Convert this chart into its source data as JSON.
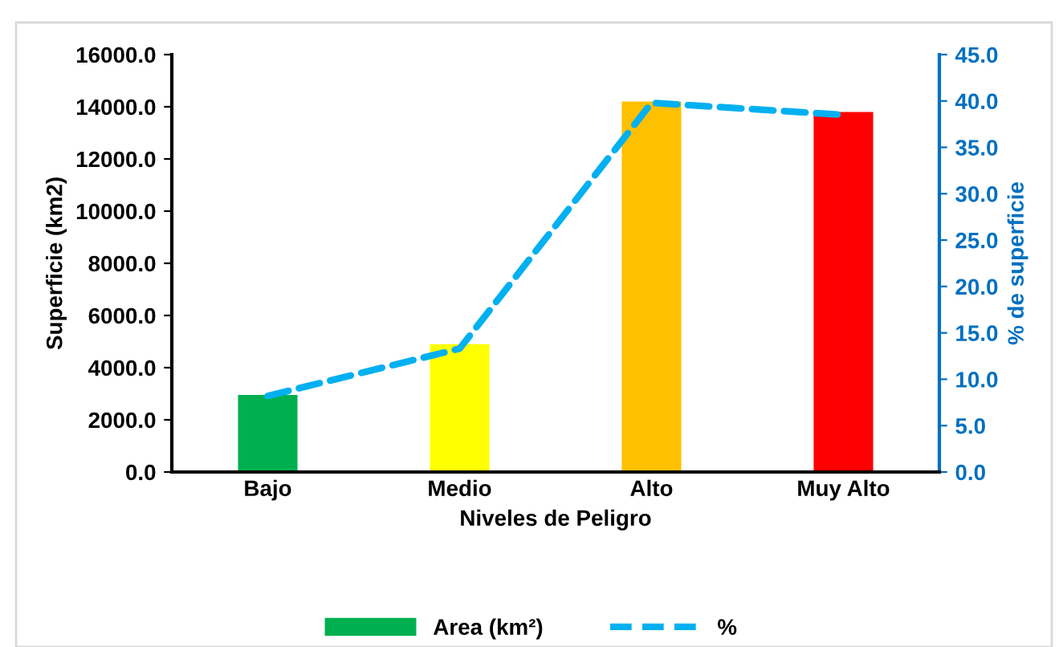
{
  "chart_data": {
    "type": "bar",
    "xlabel": "Niveles de Peligro",
    "ylabel": "Superficie (km2)",
    "y2label": "% de superficie",
    "categories": [
      "Bajo",
      "Medio",
      "Alto",
      "Muy Alto"
    ],
    "series": [
      {
        "name": "Area (km²)",
        "color": "#00b050",
        "colors": [
          "#00b050",
          "#ffff00",
          "#ffc000",
          "#ff0000"
        ],
        "values": [
          2950,
          4900,
          14200,
          13800
        ]
      },
      {
        "name": "%",
        "type": "line",
        "axis": "y2",
        "color": "#00b0f0",
        "line_style": "dashed",
        "values": [
          8.2,
          13.3,
          39.8,
          38.5
        ]
      }
    ],
    "ylim": [
      0,
      16000
    ],
    "yticks": [
      {
        "value": 0,
        "label": "0.0"
      },
      {
        "value": 2000,
        "label": "2000.0"
      },
      {
        "value": 4000,
        "label": "4000.0"
      },
      {
        "value": 6000,
        "label": "6000.0"
      },
      {
        "value": 8000,
        "label": "8000.0"
      },
      {
        "value": 10000,
        "label": "10000.0"
      },
      {
        "value": 12000,
        "label": "12000.0"
      },
      {
        "value": 14000,
        "label": "14000.0"
      },
      {
        "value": 16000,
        "label": "16000.0"
      }
    ],
    "y2lim": [
      0,
      45
    ],
    "y2ticks": [
      {
        "value": 0,
        "label": "0.0"
      },
      {
        "value": 5,
        "label": "5.0"
      },
      {
        "value": 10,
        "label": "10.0"
      },
      {
        "value": 15,
        "label": "15.0"
      },
      {
        "value": 20,
        "label": "20.0"
      },
      {
        "value": 25,
        "label": "25.0"
      },
      {
        "value": 30,
        "label": "30.0"
      },
      {
        "value": 35,
        "label": "35.0"
      },
      {
        "value": 40,
        "label": "40.0"
      },
      {
        "value": 45,
        "label": "45.0"
      }
    ],
    "grid": false,
    "legend": "bottom"
  }
}
